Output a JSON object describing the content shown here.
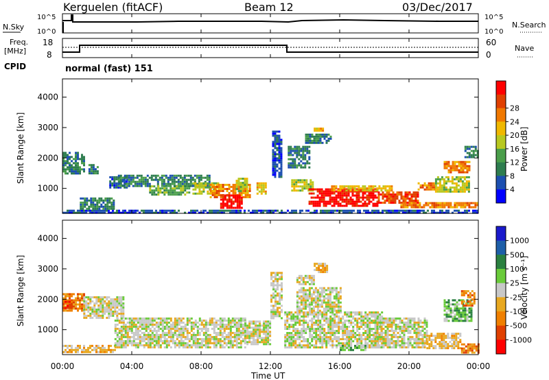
{
  "header": {
    "station": "Kerguelen (fitACF)",
    "beam": "Beam 12",
    "date": "03/Dec/2017"
  },
  "strip_nsky": {
    "left_label": "N.Sky",
    "right_label": "N.Search",
    "tick_top": "10^5",
    "tick_bottom": "10^0"
  },
  "strip_freq": {
    "left_label_1": "Freq.",
    "left_label_2": "[MHz]",
    "right_label": "Nave",
    "left_tick_top": "18",
    "left_tick_bottom": "8",
    "right_tick_top": "60",
    "right_tick_bottom": "0"
  },
  "cpid": {
    "label": "CPID",
    "value": "normal (fast) 151"
  },
  "x_axis": {
    "label": "Time UT",
    "ticks": [
      "00:00",
      "04:00",
      "08:00",
      "12:00",
      "16:00",
      "20:00",
      "00:00"
    ]
  },
  "colors": {
    "power": [
      "#0000ff",
      "#1c4fb0",
      "#2e7d4f",
      "#4a9e4a",
      "#b8c820",
      "#f0b800",
      "#f07800",
      "#e04000",
      "#ff0000"
    ],
    "velocity": [
      "#1a1acc",
      "#1e5fa8",
      "#2a8040",
      "#6acb3a",
      "#c8c8c8",
      "#e8a820",
      "#f08000",
      "#e04000",
      "#ff0000"
    ]
  },
  "chart_data": [
    {
      "type": "heatmap",
      "name": "power",
      "ylabel": "Slant Range [km]",
      "xlabel": "Time UT",
      "ylim": [
        180,
        4600
      ],
      "xlim": [
        0,
        24
      ],
      "yticks": [
        "1000",
        "2000",
        "3000",
        "4000"
      ],
      "colorbar": {
        "label": "Power [dB]",
        "ticks": [
          "4",
          "8",
          "12",
          "16",
          "20",
          "24",
          "28"
        ]
      },
      "regions": [
        {
          "t0": 0.0,
          "t1": 24.0,
          "r0": 180,
          "r1": 300,
          "level": 1
        },
        {
          "t0": 0.0,
          "t1": 1.2,
          "r0": 1500,
          "r1": 2200,
          "level": 2
        },
        {
          "t0": 1.5,
          "t1": 2.0,
          "r0": 1500,
          "r1": 1800,
          "level": 2
        },
        {
          "t0": 1.0,
          "t1": 3.0,
          "r0": 300,
          "r1": 700,
          "level": 2
        },
        {
          "t0": 2.7,
          "t1": 3.7,
          "r0": 1000,
          "r1": 1400,
          "level": 1
        },
        {
          "t0": 3.2,
          "t1": 8.5,
          "r0": 1100,
          "r1": 1450,
          "level": 2
        },
        {
          "t0": 5.0,
          "t1": 7.3,
          "r0": 800,
          "r1": 1100,
          "level": 3
        },
        {
          "t0": 7.5,
          "t1": 9.0,
          "r0": 800,
          "r1": 1200,
          "level": 4
        },
        {
          "t0": 8.5,
          "t1": 10.8,
          "r0": 700,
          "r1": 1150,
          "level": 6
        },
        {
          "t0": 9.1,
          "t1": 10.3,
          "r0": 350,
          "r1": 800,
          "level": 8
        },
        {
          "t0": 10.0,
          "t1": 10.6,
          "r0": 900,
          "r1": 1350,
          "level": 4
        },
        {
          "t0": 11.2,
          "t1": 11.7,
          "r0": 800,
          "r1": 1200,
          "level": 5
        },
        {
          "t0": 12.1,
          "t1": 12.6,
          "r0": 1400,
          "r1": 2900,
          "level": 1
        },
        {
          "t0": 13.0,
          "t1": 14.2,
          "r0": 1700,
          "r1": 2400,
          "level": 2
        },
        {
          "t0": 14.0,
          "t1": 15.5,
          "r0": 2500,
          "r1": 2800,
          "level": 2
        },
        {
          "t0": 13.2,
          "t1": 14.5,
          "r0": 900,
          "r1": 1300,
          "level": 4
        },
        {
          "t0": 14.2,
          "t1": 18.2,
          "r0": 400,
          "r1": 1000,
          "level": 8
        },
        {
          "t0": 18.2,
          "t1": 20.5,
          "r0": 500,
          "r1": 900,
          "level": 7
        },
        {
          "t0": 15.5,
          "t1": 19.0,
          "r0": 900,
          "r1": 1100,
          "level": 5
        },
        {
          "t0": 20.5,
          "t1": 21.5,
          "r0": 950,
          "r1": 1200,
          "level": 6
        },
        {
          "t0": 19.5,
          "t1": 24.0,
          "r0": 350,
          "r1": 550,
          "level": 6
        },
        {
          "t0": 21.5,
          "t1": 23.5,
          "r0": 900,
          "r1": 1400,
          "level": 4
        },
        {
          "t0": 22.0,
          "t1": 23.5,
          "r0": 1500,
          "r1": 1900,
          "level": 6
        },
        {
          "t0": 23.2,
          "t1": 24.0,
          "r0": 2000,
          "r1": 2400,
          "level": 2
        },
        {
          "t0": 14.5,
          "t1": 15.0,
          "r0": 2900,
          "r1": 3000,
          "level": 5
        }
      ]
    },
    {
      "type": "heatmap",
      "name": "velocity",
      "ylabel": "Slant Range [km]",
      "xlabel": "Time UT",
      "ylim": [
        180,
        4600
      ],
      "xlim": [
        0,
        24
      ],
      "yticks": [
        "1000",
        "2000",
        "3000",
        "4000"
      ],
      "colorbar": {
        "label": "Velocity [m s⁻¹]",
        "ticks": [
          "1000",
          "500",
          "100",
          "25",
          "-25",
          "-100",
          "-500",
          "-1000"
        ]
      },
      "regions": [
        {
          "t0": 0.0,
          "t1": 1.2,
          "r0": 1600,
          "r1": 2200,
          "level": 6
        },
        {
          "t0": 0.0,
          "t1": 0.5,
          "r0": 1700,
          "r1": 1950,
          "level": 7
        },
        {
          "t0": 1.2,
          "t1": 3.5,
          "r0": 1400,
          "r1": 2100,
          "level": 4
        },
        {
          "t0": 0.0,
          "t1": 3.0,
          "r0": 250,
          "r1": 500,
          "level": 5
        },
        {
          "t0": 3.0,
          "t1": 10.5,
          "r0": 400,
          "r1": 1400,
          "level": 4
        },
        {
          "t0": 10.5,
          "t1": 12.0,
          "r0": 500,
          "r1": 1300,
          "level": 4
        },
        {
          "t0": 12.0,
          "t1": 12.6,
          "r0": 1400,
          "r1": 2900,
          "level": 4
        },
        {
          "t0": 12.8,
          "t1": 18.5,
          "r0": 400,
          "r1": 1600,
          "level": 4
        },
        {
          "t0": 13.5,
          "t1": 16.0,
          "r0": 1600,
          "r1": 2400,
          "level": 4
        },
        {
          "t0": 14.5,
          "t1": 15.3,
          "r0": 2900,
          "r1": 3200,
          "level": 5
        },
        {
          "t0": 13.5,
          "t1": 14.5,
          "r0": 2500,
          "r1": 2800,
          "level": 4
        },
        {
          "t0": 18.0,
          "t1": 21.0,
          "r0": 400,
          "r1": 1400,
          "level": 4
        },
        {
          "t0": 16.0,
          "t1": 17.5,
          "r0": 300,
          "r1": 500,
          "level": 3
        },
        {
          "t0": 21.0,
          "t1": 23.0,
          "r0": 400,
          "r1": 900,
          "level": 5
        },
        {
          "t0": 22.0,
          "t1": 23.6,
          "r0": 1300,
          "r1": 2000,
          "level": 3
        },
        {
          "t0": 23.0,
          "t1": 23.8,
          "r0": 1800,
          "r1": 2300,
          "level": 6
        },
        {
          "t0": 23.0,
          "t1": 24.0,
          "r0": 250,
          "r1": 550,
          "level": 6
        }
      ]
    }
  ]
}
